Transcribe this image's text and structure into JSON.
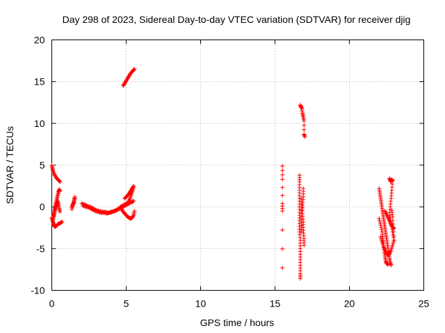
{
  "chart_data": {
    "type": "scatter",
    "title": "Day 298 of 2023, Sidereal Day-to-day VTEC variation (SDTVAR) for receiver djig",
    "xlabel": "GPS time / hours",
    "ylabel": "SDTVAR / TECUs",
    "xlim": [
      0,
      25
    ],
    "ylim": [
      -10,
      20
    ],
    "xticks": [
      "0",
      "5",
      "10",
      "15",
      "20",
      "25"
    ],
    "yticks": [
      "-10",
      "-5",
      "0",
      "5",
      "10",
      "15",
      "20"
    ],
    "grid": true,
    "marker": "+",
    "color": "#ff0000",
    "segments": [
      {
        "name": "arc-a1",
        "points": [
          [
            0.0,
            5.0
          ],
          [
            0.05,
            4.6
          ],
          [
            0.1,
            4.2
          ],
          [
            0.2,
            3.8
          ],
          [
            0.3,
            3.5
          ],
          [
            0.4,
            3.3
          ],
          [
            0.5,
            3.1
          ],
          [
            0.55,
            3.0
          ]
        ]
      },
      {
        "name": "arc-a2",
        "points": [
          [
            0.0,
            -1.3
          ],
          [
            0.05,
            -1.6
          ],
          [
            0.1,
            -1.9
          ],
          [
            0.15,
            -2.2
          ],
          [
            0.2,
            -2.4
          ],
          [
            0.3,
            -2.3
          ],
          [
            0.4,
            -2.1
          ],
          [
            0.5,
            -2.0
          ],
          [
            0.6,
            -1.9
          ],
          [
            0.7,
            -1.8
          ]
        ]
      },
      {
        "name": "arc-a3",
        "points": [
          [
            0.1,
            -1.2
          ],
          [
            0.15,
            -0.8
          ],
          [
            0.2,
            -0.3
          ],
          [
            0.25,
            0.2
          ],
          [
            0.3,
            0.6
          ],
          [
            0.35,
            1.0
          ],
          [
            0.4,
            1.4
          ],
          [
            0.45,
            1.8
          ],
          [
            0.5,
            2.1
          ],
          [
            0.55,
            1.9
          ]
        ]
      },
      {
        "name": "arc-a4",
        "points": [
          [
            0.1,
            -1.5
          ],
          [
            0.15,
            -1.0
          ],
          [
            0.2,
            -0.5
          ],
          [
            0.25,
            -0.1
          ],
          [
            0.3,
            0.1
          ],
          [
            0.35,
            0.4
          ],
          [
            0.4,
            0.7
          ],
          [
            0.45,
            0.3
          ],
          [
            0.5,
            -0.2
          ],
          [
            0.55,
            -0.6
          ]
        ]
      },
      {
        "name": "arc-b1",
        "points": [
          [
            1.35,
            0.0
          ],
          [
            1.45,
            0.4
          ],
          [
            1.5,
            0.8
          ],
          [
            1.55,
            1.2
          ],
          [
            1.5,
            0.6
          ],
          [
            1.4,
            0.2
          ],
          [
            1.35,
            -0.3
          ]
        ]
      },
      {
        "name": "arc-b2",
        "points": [
          [
            2.0,
            0.4
          ],
          [
            2.2,
            0.3
          ],
          [
            2.4,
            0.1
          ],
          [
            2.6,
            0.0
          ],
          [
            2.8,
            -0.2
          ],
          [
            3.0,
            -0.4
          ],
          [
            3.2,
            -0.5
          ],
          [
            3.4,
            -0.6
          ],
          [
            3.6,
            -0.6
          ],
          [
            3.8,
            -0.7
          ],
          [
            4.0,
            -0.6
          ],
          [
            4.2,
            -0.5
          ],
          [
            4.4,
            -0.4
          ],
          [
            4.6,
            -0.2
          ],
          [
            4.8,
            0.0
          ],
          [
            5.0,
            0.2
          ],
          [
            5.2,
            0.4
          ],
          [
            5.4,
            0.6
          ],
          [
            5.5,
            0.7
          ]
        ]
      },
      {
        "name": "arc-b3",
        "points": [
          [
            2.1,
            0.1
          ],
          [
            2.3,
            0.0
          ],
          [
            2.5,
            -0.1
          ],
          [
            2.7,
            -0.3
          ],
          [
            2.9,
            -0.5
          ],
          [
            3.1,
            -0.6
          ],
          [
            3.3,
            -0.7
          ],
          [
            3.5,
            -0.7
          ],
          [
            3.7,
            -0.8
          ],
          [
            3.9,
            -0.7
          ],
          [
            4.1,
            -0.6
          ],
          [
            4.3,
            -0.4
          ],
          [
            4.5,
            -0.2
          ],
          [
            4.7,
            0.1
          ],
          [
            4.9,
            0.3
          ],
          [
            5.1,
            0.5
          ],
          [
            5.3,
            0.6
          ]
        ]
      },
      {
        "name": "arc-b4",
        "points": [
          [
            4.9,
            1.0
          ],
          [
            5.0,
            1.2
          ],
          [
            5.1,
            1.4
          ],
          [
            5.2,
            1.6
          ],
          [
            5.3,
            1.9
          ],
          [
            5.4,
            2.2
          ],
          [
            5.5,
            2.5
          ],
          [
            5.45,
            2.0
          ],
          [
            5.35,
            1.5
          ],
          [
            5.25,
            1.0
          ],
          [
            5.15,
            0.6
          ]
        ]
      },
      {
        "name": "arc-b5",
        "points": [
          [
            4.6,
            0.0
          ],
          [
            4.7,
            -0.3
          ],
          [
            4.8,
            -0.6
          ],
          [
            4.9,
            -0.8
          ],
          [
            5.0,
            -1.0
          ],
          [
            5.1,
            -1.2
          ],
          [
            5.2,
            -1.3
          ],
          [
            5.3,
            -1.4
          ],
          [
            5.4,
            -1.3
          ],
          [
            5.5,
            -1.0
          ],
          [
            5.55,
            -0.5
          ]
        ]
      },
      {
        "name": "arc-c",
        "points": [
          [
            4.8,
            14.5
          ],
          [
            4.9,
            14.8
          ],
          [
            5.0,
            15.1
          ],
          [
            5.1,
            15.4
          ],
          [
            5.2,
            15.7
          ],
          [
            5.3,
            16.0
          ],
          [
            5.4,
            16.2
          ],
          [
            5.5,
            16.4
          ],
          [
            5.55,
            16.5
          ]
        ]
      },
      {
        "name": "arc-d",
        "points": [
          [
            15.5,
            4.9
          ],
          [
            15.5,
            3.3
          ],
          [
            15.5,
            0.4
          ],
          [
            15.5,
            -0.5
          ],
          [
            15.5,
            -7.3
          ]
        ]
      },
      {
        "name": "arc-e1",
        "points": [
          [
            16.7,
            12.2
          ],
          [
            16.75,
            12.0
          ],
          [
            16.8,
            11.8
          ],
          [
            16.85,
            11.2
          ],
          [
            16.9,
            10.8
          ],
          [
            16.95,
            10.3
          ],
          [
            16.95,
            8.7
          ],
          [
            17.0,
            8.4
          ]
        ]
      },
      {
        "name": "arc-e2",
        "points": [
          [
            16.65,
            3.8
          ],
          [
            16.65,
            3.0
          ],
          [
            16.65,
            2.0
          ],
          [
            16.65,
            1.0
          ],
          [
            16.65,
            0.0
          ],
          [
            16.65,
            -1.0
          ],
          [
            16.65,
            -2.0
          ],
          [
            16.65,
            -3.0
          ],
          [
            16.7,
            -4.0
          ],
          [
            16.7,
            -5.0
          ],
          [
            16.7,
            -6.0
          ],
          [
            16.7,
            -7.0
          ],
          [
            16.7,
            -8.0
          ],
          [
            16.7,
            -8.6
          ]
        ]
      },
      {
        "name": "arc-e3",
        "points": [
          [
            16.9,
            2.2
          ],
          [
            16.9,
            1.2
          ],
          [
            16.85,
            0.2
          ],
          [
            16.85,
            -0.8
          ],
          [
            16.9,
            -1.8
          ],
          [
            16.9,
            -2.8
          ],
          [
            16.95,
            -3.8
          ],
          [
            16.95,
            -4.6
          ]
        ]
      },
      {
        "name": "arc-e4",
        "points": [
          [
            16.75,
            1.0
          ],
          [
            16.8,
            0.0
          ],
          [
            16.75,
            -1.2
          ],
          [
            16.8,
            -2.2
          ],
          [
            16.75,
            -3.0
          ]
        ]
      },
      {
        "name": "arc-f1",
        "points": [
          [
            22.0,
            2.2
          ],
          [
            22.05,
            1.6
          ],
          [
            22.1,
            1.0
          ],
          [
            22.15,
            0.4
          ],
          [
            22.2,
            -0.2
          ],
          [
            22.25,
            -0.8
          ],
          [
            22.3,
            -1.4
          ],
          [
            22.35,
            -2.0
          ],
          [
            22.4,
            -2.6
          ],
          [
            22.45,
            -3.2
          ],
          [
            22.5,
            -3.8
          ],
          [
            22.55,
            -4.4
          ],
          [
            22.6,
            -5.0
          ],
          [
            22.65,
            -5.6
          ],
          [
            22.7,
            -6.2
          ],
          [
            22.75,
            -6.7
          ],
          [
            22.8,
            -7.0
          ]
        ]
      },
      {
        "name": "arc-f2",
        "points": [
          [
            22.0,
            -1.4
          ],
          [
            22.1,
            -2.2
          ],
          [
            22.2,
            -3.0
          ],
          [
            22.25,
            -3.8
          ],
          [
            22.3,
            -4.6
          ],
          [
            22.35,
            -5.4
          ],
          [
            22.4,
            -6.0
          ],
          [
            22.45,
            -6.5
          ],
          [
            22.5,
            -6.8
          ],
          [
            22.6,
            -6.9
          ]
        ]
      },
      {
        "name": "arc-f3",
        "points": [
          [
            22.1,
            -3.6
          ],
          [
            22.2,
            -4.2
          ],
          [
            22.3,
            -4.8
          ],
          [
            22.4,
            -5.2
          ],
          [
            22.5,
            -5.6
          ],
          [
            22.6,
            -5.8
          ],
          [
            22.7,
            -5.6
          ],
          [
            22.8,
            -5.2
          ],
          [
            22.9,
            -4.6
          ],
          [
            23.0,
            -4.0
          ]
        ]
      },
      {
        "name": "arc-f4",
        "points": [
          [
            22.7,
            3.4
          ],
          [
            22.75,
            3.2
          ],
          [
            22.8,
            3.0
          ],
          [
            22.85,
            3.3
          ],
          [
            22.9,
            3.1
          ],
          [
            22.85,
            2.0
          ],
          [
            22.8,
            1.0
          ],
          [
            22.75,
            0.0
          ],
          [
            22.7,
            -1.0
          ],
          [
            22.8,
            -2.0
          ],
          [
            22.9,
            -3.0
          ],
          [
            23.0,
            -4.0
          ],
          [
            22.95,
            -2.5
          ],
          [
            22.9,
            -1.2
          ],
          [
            22.85,
            -0.4
          ]
        ]
      },
      {
        "name": "arc-f5",
        "points": [
          [
            22.4,
            -0.5
          ],
          [
            22.5,
            -0.9
          ],
          [
            22.6,
            -1.3
          ],
          [
            22.7,
            -1.7
          ],
          [
            22.8,
            -2.1
          ],
          [
            22.9,
            -2.4
          ],
          [
            23.0,
            -2.6
          ]
        ]
      }
    ]
  }
}
